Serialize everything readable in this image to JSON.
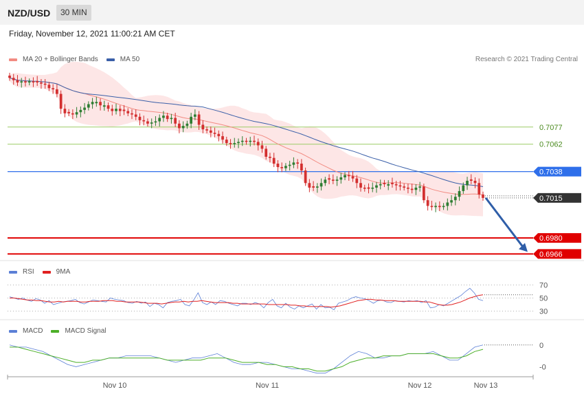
{
  "header": {
    "pair": "NZD/USD",
    "interval": "30 MIN",
    "datetime": "Friday, November 12, 2021 11:00:21 AM CET"
  },
  "legend_main": [
    {
      "label": "MA 20 + Bollinger Bands",
      "color": "#f28b82"
    },
    {
      "label": "MA 50",
      "color": "#3a5fa8"
    }
  ],
  "copyright": "Research © 2021 Trading Central",
  "legend_rsi": [
    {
      "label": "RSI",
      "color": "#5b7fd6"
    },
    {
      "label": "9MA",
      "color": "#e02020"
    }
  ],
  "legend_macd": [
    {
      "label": "MACD",
      "color": "#5b7fd6"
    },
    {
      "label": "MACD Signal",
      "color": "#4caf28"
    }
  ],
  "colors": {
    "bull": "#2e7d32",
    "bear": "#d32f2f",
    "resistance_green": "#9ccc65",
    "pivot_blue": "#2f6fea",
    "support_red": "#e00000",
    "current": "#333333",
    "ma20": "#f28b82",
    "ma50": "#3a5fa8",
    "band": "#fde3e3",
    "arrow": "#2f5ea8"
  },
  "chart_data": [
    {
      "type": "candlestick",
      "title": "NZD/USD",
      "ylim": [
        0.6962,
        0.7128
      ],
      "levels": [
        {
          "label": "0.7077",
          "value": 0.7077,
          "kind": "resistance"
        },
        {
          "label": "0.7062",
          "value": 0.7062,
          "kind": "resistance"
        },
        {
          "label": "0.7038",
          "value": 0.7038,
          "kind": "pivot"
        },
        {
          "label": "0.7015",
          "value": 0.7015,
          "kind": "current"
        },
        {
          "label": "0.6980",
          "value": 0.698,
          "kind": "support"
        },
        {
          "label": "0.6966",
          "value": 0.6966,
          "kind": "support"
        }
      ],
      "x_ticks": [
        "Nov 10",
        "Nov 11",
        "Nov 12",
        "Nov 13"
      ],
      "close": [
        0.712,
        0.7118,
        0.7116,
        0.7117,
        0.7116,
        0.7117,
        0.7116,
        0.7116,
        0.7115,
        0.7114,
        0.7111,
        0.711,
        0.7106,
        0.7093,
        0.7089,
        0.7089,
        0.7088,
        0.709,
        0.7092,
        0.7094,
        0.7097,
        0.7099,
        0.7099,
        0.7096,
        0.7096,
        0.7093,
        0.7091,
        0.7093,
        0.7091,
        0.7091,
        0.7089,
        0.7088,
        0.7086,
        0.7083,
        0.7082,
        0.708,
        0.7081,
        0.7082,
        0.7085,
        0.7087,
        0.7084,
        0.7085,
        0.708,
        0.7076,
        0.7078,
        0.708,
        0.7086,
        0.7088,
        0.7079,
        0.7075,
        0.7074,
        0.7072,
        0.7071,
        0.7069,
        0.7066,
        0.7063,
        0.7062,
        0.7063,
        0.7064,
        0.7065,
        0.7064,
        0.7065,
        0.7064,
        0.7061,
        0.7058,
        0.7051,
        0.705,
        0.7045,
        0.7042,
        0.7041,
        0.7043,
        0.7044,
        0.7046,
        0.7045,
        0.7039,
        0.7028,
        0.7024,
        0.7024,
        0.7025,
        0.7028,
        0.7031,
        0.7031,
        0.703,
        0.7031,
        0.7033,
        0.7035,
        0.7034,
        0.7032,
        0.7028,
        0.7024,
        0.7023,
        0.7023,
        0.7024,
        0.7026,
        0.7027,
        0.7027,
        0.7027,
        0.7027,
        0.7026,
        0.7025,
        0.7024,
        0.7023,
        0.7022,
        0.7024,
        0.7025,
        0.7013,
        0.7008,
        0.7007,
        0.7008,
        0.7007,
        0.7008,
        0.7011,
        0.7013,
        0.7016,
        0.7021,
        0.7026,
        0.703,
        0.703,
        0.7028,
        0.7018,
        0.7015
      ]
    },
    {
      "type": "line",
      "title": "RSI",
      "ylim": [
        20,
        80
      ],
      "y_ticks": [
        70,
        50,
        30
      ],
      "series": [
        {
          "name": "RSI",
          "values": [
            52,
            50,
            48,
            50,
            47,
            45,
            49,
            47,
            42,
            46,
            40,
            42,
            44,
            45,
            46,
            48,
            43,
            41,
            44,
            47,
            46,
            45,
            44,
            50,
            48,
            47,
            46,
            43,
            42,
            45,
            42,
            44,
            37,
            42,
            40,
            35,
            43,
            45,
            46,
            48,
            40,
            38,
            47,
            58,
            43,
            40,
            44,
            40,
            46,
            45,
            42,
            40,
            38,
            42,
            42,
            40,
            43,
            41,
            35,
            43,
            48,
            38,
            35,
            42,
            36,
            33,
            38,
            35,
            38,
            41,
            33,
            40,
            35,
            36,
            32,
            42,
            44,
            46,
            50,
            52,
            50,
            49,
            46,
            42,
            46,
            47,
            44,
            43,
            46,
            45,
            44,
            46,
            45,
            46,
            43,
            46,
            35,
            36,
            40,
            38,
            42,
            46,
            50,
            54,
            60,
            65,
            58,
            48,
            46
          ]
        },
        {
          "name": "9MA",
          "values": [
            50,
            50,
            49,
            48,
            47,
            47,
            46,
            46,
            45,
            44,
            44,
            45,
            44,
            45,
            45,
            45,
            44,
            44,
            45,
            45,
            45,
            46,
            46,
            46,
            45,
            45,
            44,
            44,
            44,
            44,
            43,
            42,
            42,
            42,
            41,
            42,
            43,
            44,
            44,
            45,
            44,
            45,
            45,
            46,
            45,
            44,
            43,
            43,
            43,
            43,
            42,
            42,
            41,
            41,
            41,
            41,
            41,
            41,
            40,
            40,
            40,
            40,
            40,
            39,
            39,
            38,
            38,
            37,
            37,
            37,
            37,
            37,
            36,
            37,
            38,
            40,
            42,
            44,
            46,
            47,
            48,
            48,
            47,
            47,
            46,
            46,
            46,
            45,
            45,
            45,
            45,
            45,
            45,
            44,
            44,
            42,
            40,
            39,
            39,
            40,
            42,
            44,
            47,
            50,
            52,
            54,
            55
          ]
        }
      ]
    },
    {
      "type": "line",
      "title": "MACD",
      "ylim": [
        -0.0014,
        0.0005
      ],
      "y_ticks": [
        {
          "label": "0",
          "value": 0
        },
        {
          "label": "-0",
          "value": -0.001
        }
      ],
      "series": [
        {
          "name": "MACD",
          "values": [
            0.0,
            -0.0001,
            -0.0001,
            -0.0002,
            -0.0003,
            -0.0005,
            -0.0007,
            -0.0009,
            -0.001,
            -0.0009,
            -0.0008,
            -0.0007,
            -0.0006,
            -0.0006,
            -0.0005,
            -0.0005,
            -0.0005,
            -0.0005,
            -0.0006,
            -0.0007,
            -0.0008,
            -0.0007,
            -0.0006,
            -0.0006,
            -0.0005,
            -0.0004,
            -0.0006,
            -0.0008,
            -0.0009,
            -0.0009,
            -0.0008,
            -0.0008,
            -0.0009,
            -0.001,
            -0.0011,
            -0.0011,
            -0.0012,
            -0.0013,
            -0.0013,
            -0.0011,
            -0.0008,
            -0.0005,
            -0.0003,
            -0.0004,
            -0.0006,
            -0.0006,
            -0.0005,
            -0.0005,
            -0.0004,
            -0.0004,
            -0.0004,
            -0.0003,
            -0.0005,
            -0.0007,
            -0.0007,
            -0.0004,
            -0.0001,
            0.0
          ]
        },
        {
          "name": "MACD Signal",
          "values": [
            -0.0001,
            -0.0001,
            -0.0002,
            -0.0003,
            -0.0004,
            -0.0005,
            -0.0006,
            -0.0007,
            -0.0008,
            -0.0008,
            -0.0007,
            -0.0007,
            -0.0006,
            -0.0006,
            -0.0006,
            -0.0006,
            -0.0006,
            -0.0006,
            -0.0006,
            -0.0007,
            -0.0007,
            -0.0007,
            -0.0007,
            -0.0007,
            -0.0006,
            -0.0006,
            -0.0006,
            -0.0007,
            -0.0008,
            -0.0008,
            -0.0008,
            -0.0009,
            -0.0009,
            -0.001,
            -0.001,
            -0.0011,
            -0.0011,
            -0.0012,
            -0.0012,
            -0.0011,
            -0.001,
            -0.0008,
            -0.0007,
            -0.0006,
            -0.0006,
            -0.0005,
            -0.0005,
            -0.0005,
            -0.0004,
            -0.0004,
            -0.0004,
            -0.0004,
            -0.0005,
            -0.0006,
            -0.0006,
            -0.0005,
            -0.0003,
            -0.0002
          ]
        }
      ]
    }
  ]
}
